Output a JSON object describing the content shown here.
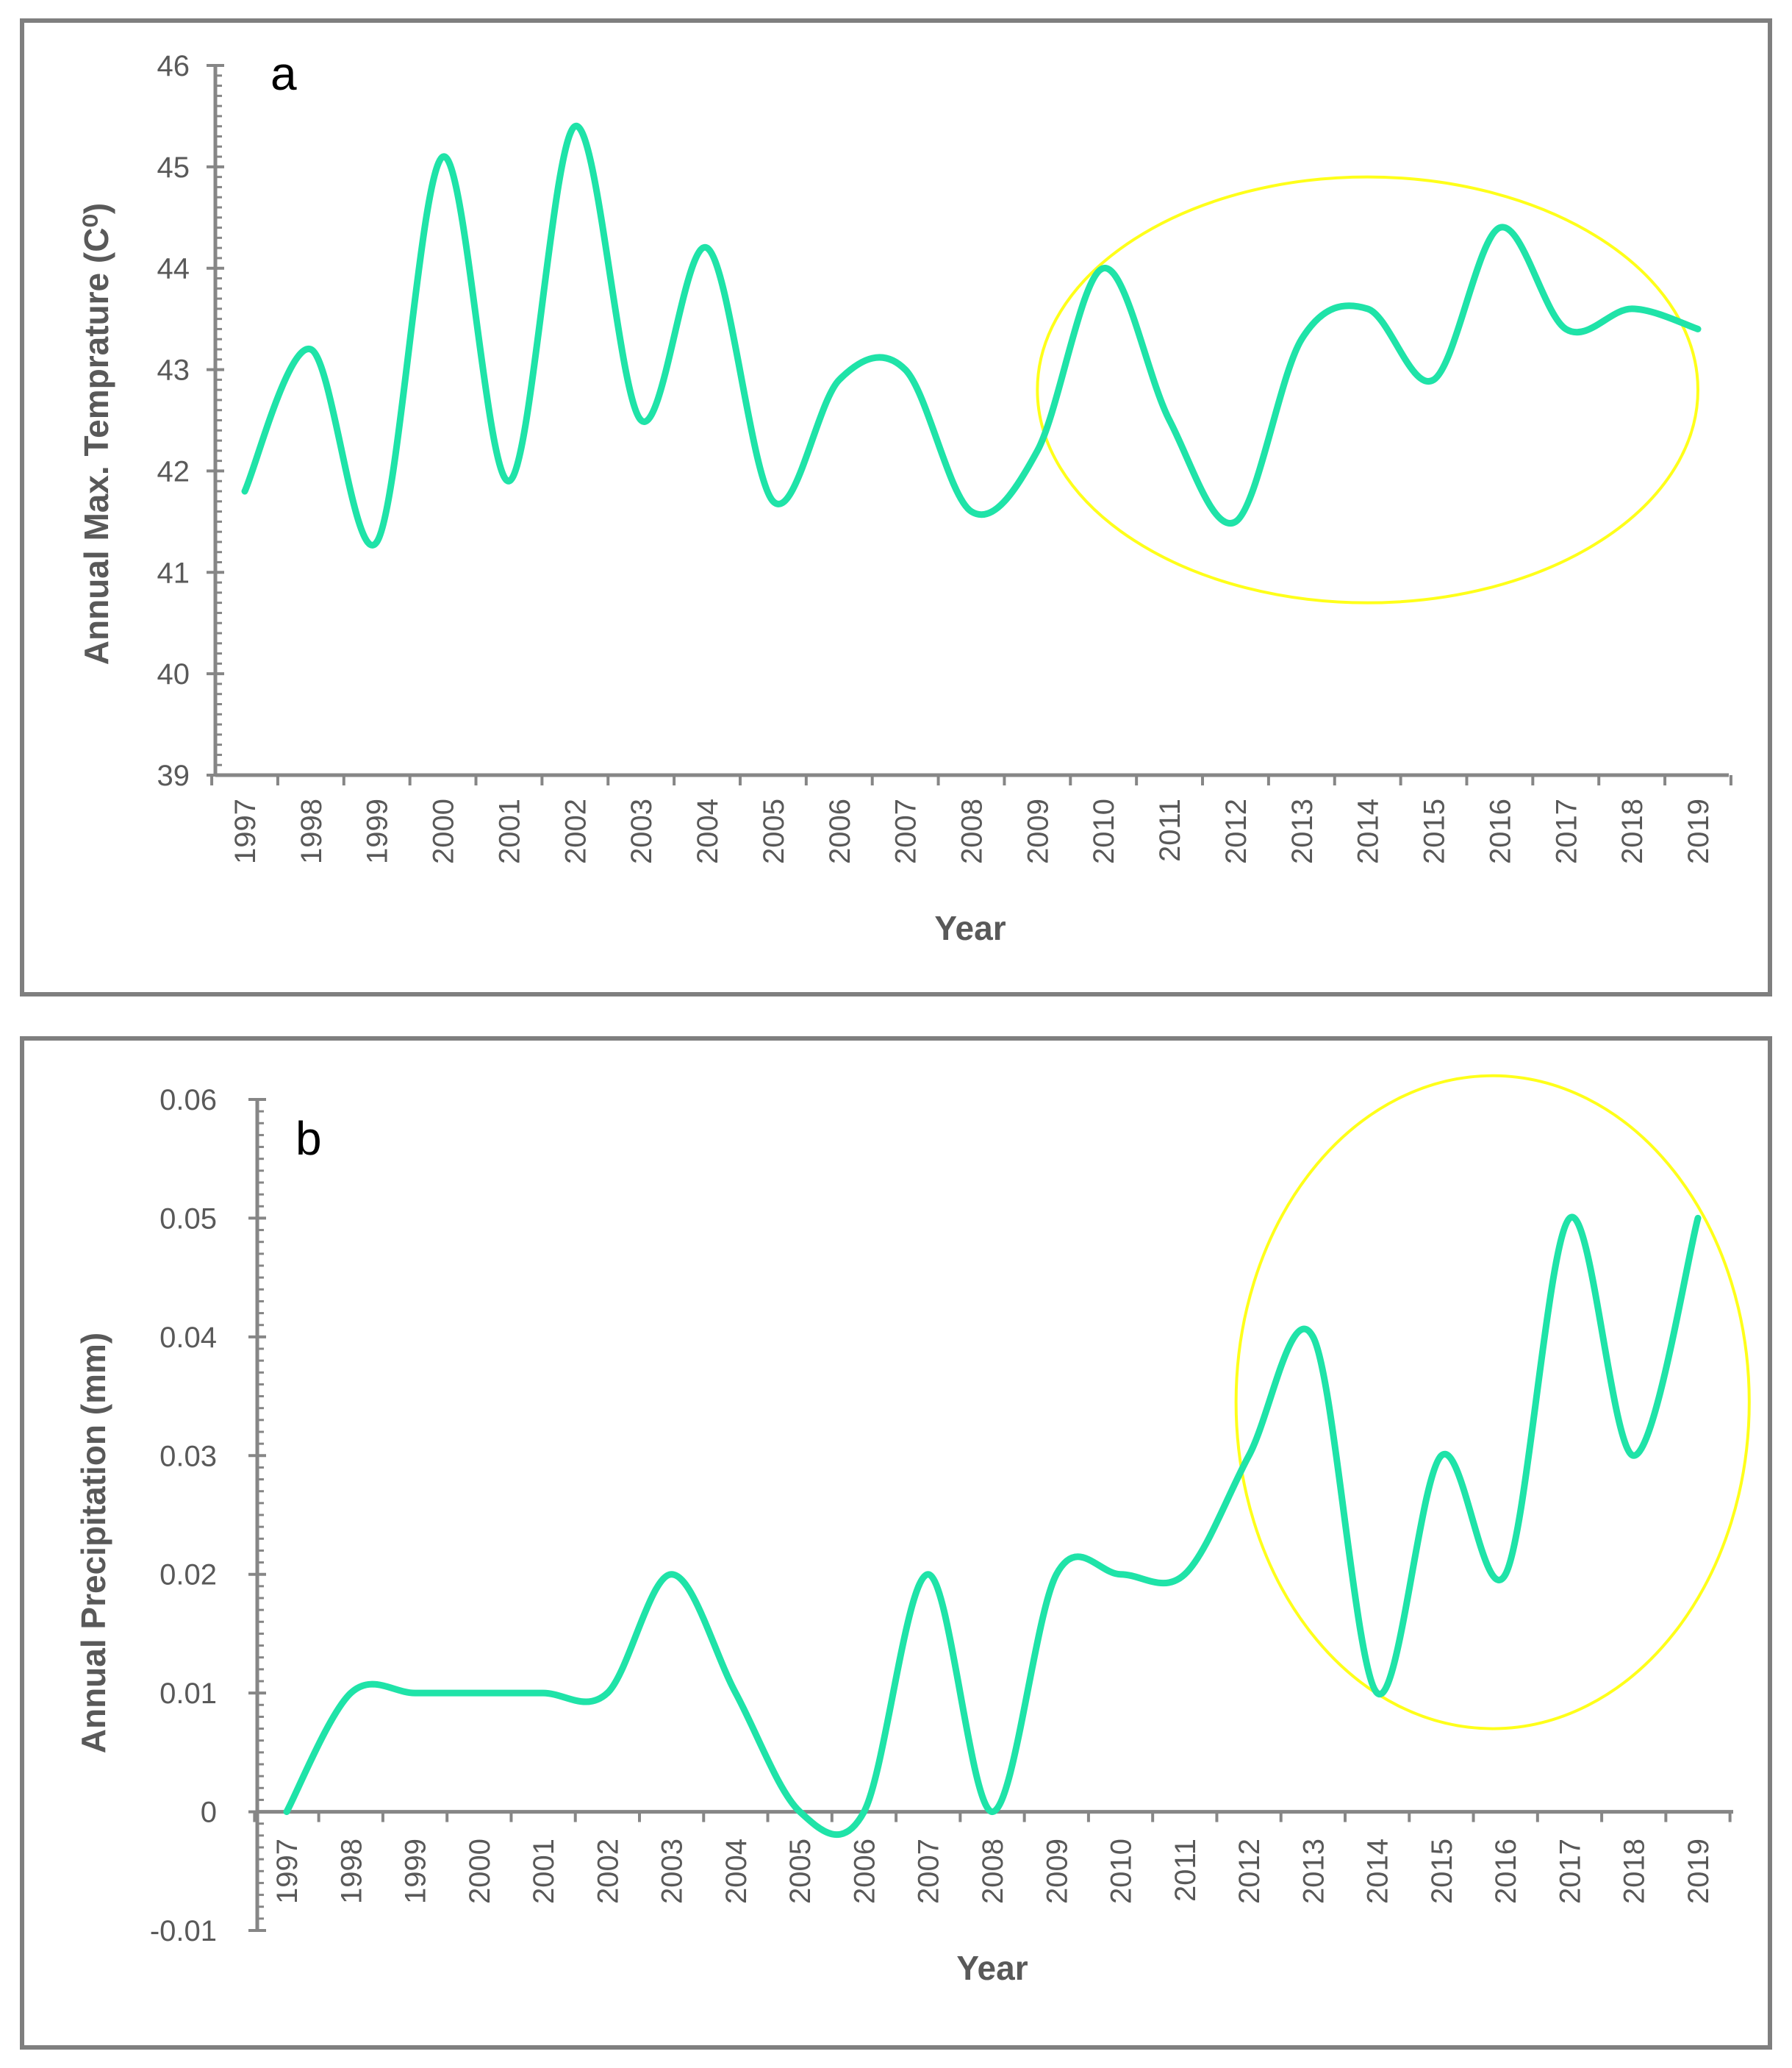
{
  "figure": {
    "colors": {
      "line": "#1FE3A8",
      "highlight": "#FFFF1A",
      "axis": "#868686",
      "border": "#7F7F7F",
      "text": "#595959"
    }
  },
  "chart_data": [
    {
      "type": "line",
      "panel_label": "a",
      "title": "",
      "xlabel": "Year",
      "ylabel": "Annual Max. Temprature (C⁰)",
      "ylim": [
        39,
        46
      ],
      "yticks": [
        39,
        40,
        41,
        42,
        43,
        44,
        45,
        46
      ],
      "x": [
        "1997",
        "1998",
        "1999",
        "2000",
        "2001",
        "2002",
        "2003",
        "2004",
        "2005",
        "2006",
        "2007",
        "2008",
        "2009",
        "2010",
        "2011",
        "2012",
        "2013",
        "2014",
        "2015",
        "2016",
        "2017",
        "2018",
        "2019"
      ],
      "series": [
        {
          "name": "Annual Max. Temperature",
          "values": [
            41.8,
            43.2,
            41.3,
            45.1,
            41.9,
            45.4,
            42.5,
            44.2,
            41.7,
            42.9,
            43.0,
            41.6,
            42.2,
            44.0,
            42.5,
            41.5,
            43.3,
            43.6,
            42.9,
            44.4,
            43.4,
            43.6,
            43.4
          ]
        }
      ],
      "highlight": {
        "shape": "ellipse",
        "from": "2009",
        "to": "2019",
        "ymin": 40.7,
        "ymax": 44.9
      }
    },
    {
      "type": "line",
      "panel_label": "b",
      "title": "",
      "xlabel": "Year",
      "ylabel": "Annual Precipitation (mm)",
      "ylim": [
        -0.01,
        0.06
      ],
      "yticks": [
        -0.01,
        0,
        0.01,
        0.02,
        0.03,
        0.04,
        0.05,
        0.06
      ],
      "ytick_labels": [
        "-0.01",
        "0",
        "0.01",
        "0.02",
        "0.03",
        "0.04",
        "0.05",
        "0.06"
      ],
      "x": [
        "1997",
        "1998",
        "1999",
        "2000",
        "2001",
        "2002",
        "2003",
        "2004",
        "2005",
        "2006",
        "2007",
        "2008",
        "2009",
        "2010",
        "2011",
        "2012",
        "2013",
        "2014",
        "2015",
        "2016",
        "2017",
        "2018",
        "2019"
      ],
      "series": [
        {
          "name": "Annual Precipitation",
          "values": [
            0,
            0.01,
            0.01,
            0.01,
            0.01,
            0.01,
            0.02,
            0.01,
            0,
            0,
            0.02,
            0,
            0.02,
            0.02,
            0.02,
            0.03,
            0.04,
            0.01,
            0.03,
            0.02,
            0.05,
            0.03,
            0.05
          ]
        }
      ],
      "highlight": {
        "shape": "ellipse",
        "from": "2011.8",
        "to": "2019.8",
        "ymin": 0.007,
        "ymax": 0.062
      }
    }
  ]
}
